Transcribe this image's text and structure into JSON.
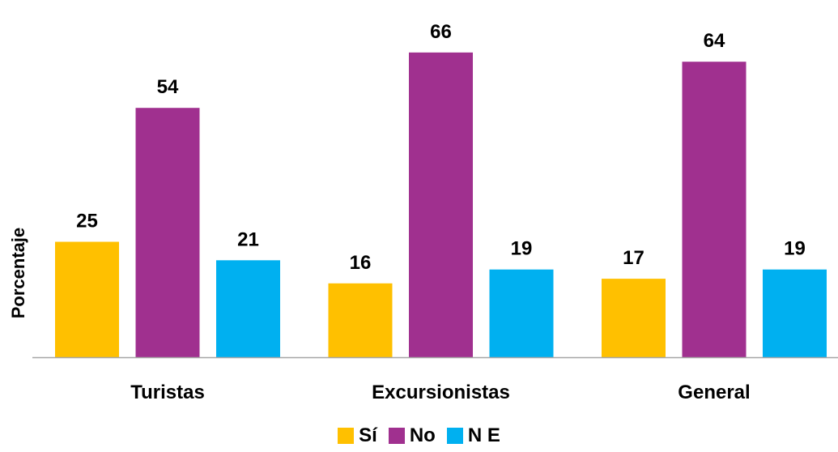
{
  "chart_data": {
    "type": "bar",
    "title": "",
    "xlabel": "",
    "ylabel": "Porcentaje",
    "ylim": [
      0,
      72
    ],
    "grid": false,
    "legend_position": "bottom",
    "categories": [
      "Turistas",
      "Excursionistas",
      "General"
    ],
    "series": [
      {
        "name": "Sí",
        "color": "#FFC000",
        "values": [
          25,
          16,
          17
        ]
      },
      {
        "name": "No",
        "color": "#A0308F",
        "values": [
          54,
          66,
          64
        ]
      },
      {
        "name": "N E",
        "color": "#00B0F0",
        "values": [
          21,
          19,
          19
        ]
      }
    ]
  }
}
